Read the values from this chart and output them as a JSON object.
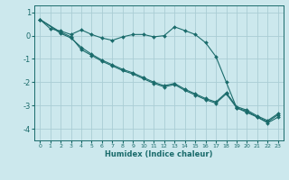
{
  "xlabel": "Humidex (Indice chaleur)",
  "background_color": "#cce8ed",
  "grid_color": "#aacdd4",
  "line_color": "#1a6b6b",
  "xlim": [
    -0.5,
    23.5
  ],
  "ylim": [
    -4.5,
    1.3
  ],
  "yticks": [
    1,
    0,
    -1,
    -2,
    -3,
    -4
  ],
  "xticks": [
    0,
    1,
    2,
    3,
    4,
    5,
    6,
    7,
    8,
    9,
    10,
    11,
    12,
    13,
    14,
    15,
    16,
    17,
    18,
    19,
    20,
    21,
    22,
    23
  ],
  "series1_x": [
    0,
    1,
    2,
    3,
    4,
    5,
    6,
    7,
    8,
    9,
    10,
    11,
    12,
    13,
    14,
    15,
    16,
    17,
    18,
    19,
    20,
    21,
    22,
    23
  ],
  "series1_y": [
    0.7,
    0.3,
    0.2,
    0.05,
    0.25,
    0.05,
    -0.1,
    -0.2,
    -0.05,
    0.05,
    0.05,
    -0.05,
    0.0,
    0.38,
    0.22,
    0.05,
    -0.3,
    -0.9,
    -2.0,
    -3.1,
    -3.3,
    -3.5,
    -3.75,
    -3.5
  ],
  "series2_x": [
    0,
    2,
    3,
    4,
    5,
    6,
    7,
    8,
    9,
    10,
    11,
    12,
    13,
    14,
    15,
    16,
    17,
    18,
    19,
    20,
    21,
    22,
    23
  ],
  "series2_y": [
    0.7,
    0.15,
    -0.05,
    -0.6,
    -0.85,
    -1.1,
    -1.3,
    -1.5,
    -1.65,
    -1.85,
    -2.05,
    -2.2,
    -2.1,
    -2.35,
    -2.55,
    -2.75,
    -2.9,
    -2.5,
    -3.1,
    -3.25,
    -3.5,
    -3.7,
    -3.4
  ],
  "series3_x": [
    0,
    2,
    3,
    4,
    5,
    6,
    7,
    8,
    9,
    10,
    11,
    12,
    13,
    14,
    15,
    16,
    17,
    18,
    19,
    20,
    21,
    22,
    23
  ],
  "series3_y": [
    0.7,
    0.1,
    -0.1,
    -0.5,
    -0.8,
    -1.05,
    -1.25,
    -1.45,
    -1.6,
    -1.8,
    -2.0,
    -2.15,
    -2.05,
    -2.3,
    -2.5,
    -2.7,
    -2.85,
    -2.45,
    -3.05,
    -3.2,
    -3.45,
    -3.65,
    -3.35
  ]
}
